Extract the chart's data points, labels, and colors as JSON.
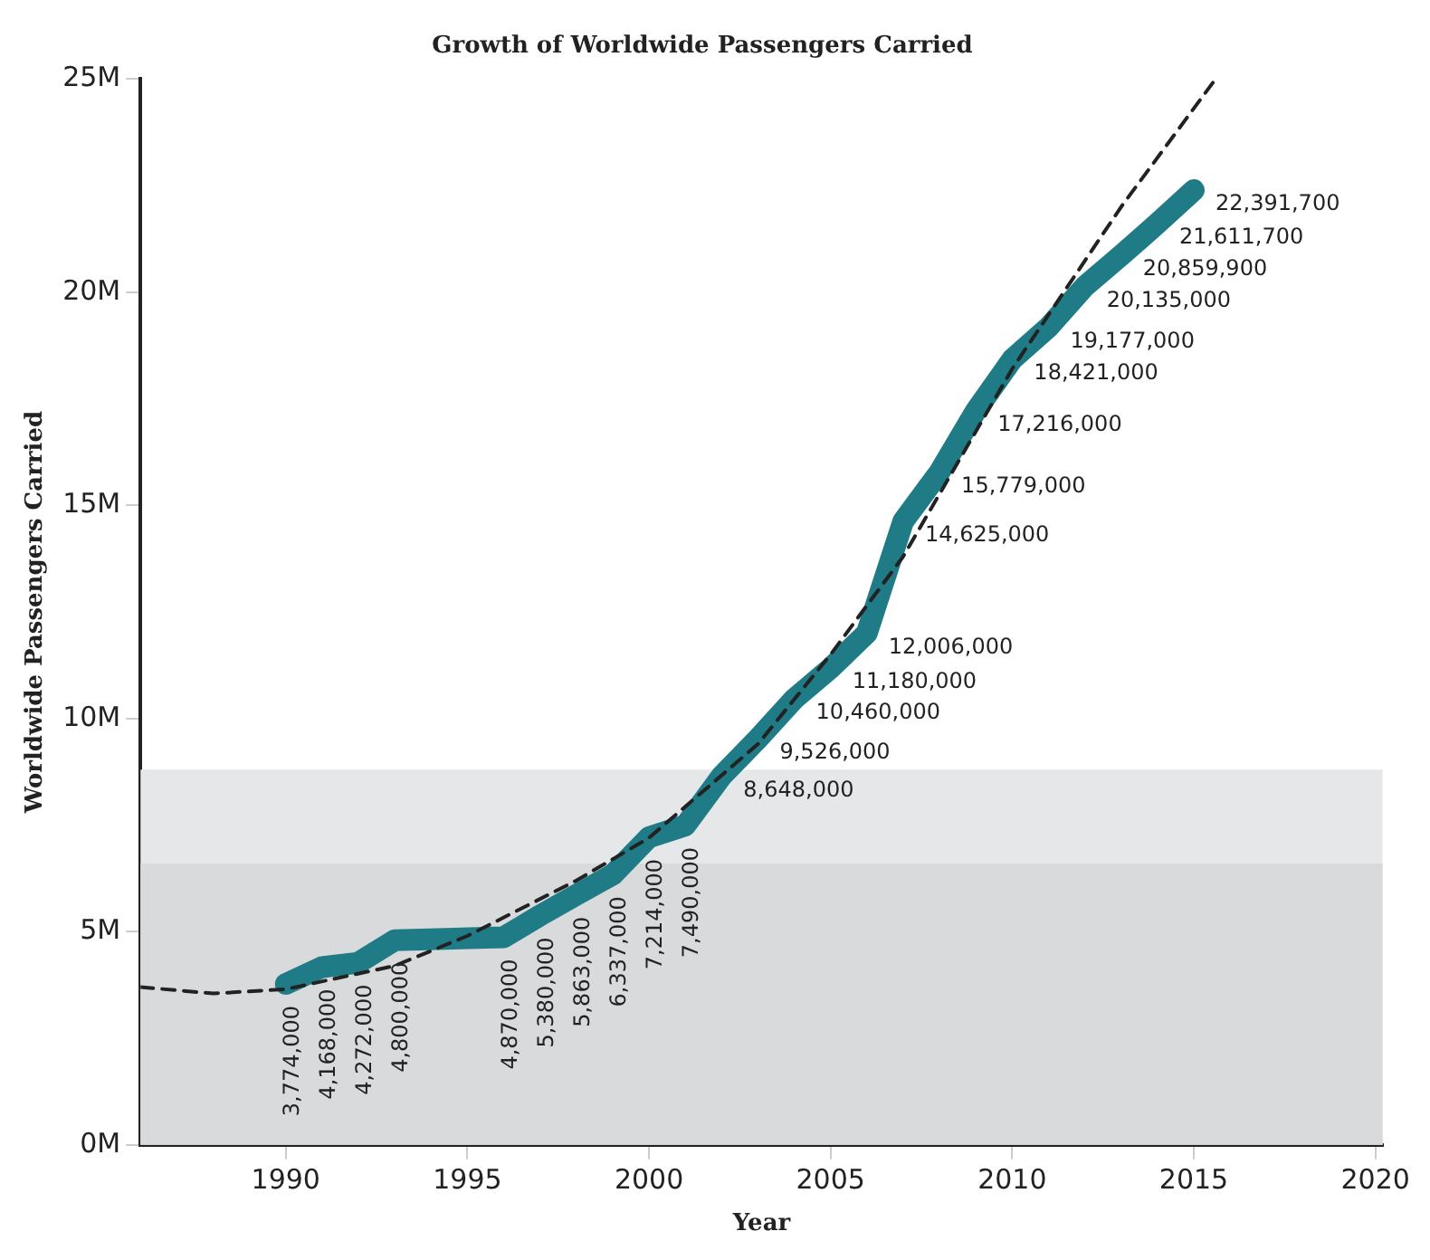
{
  "chart_data": {
    "type": "line",
    "title": "Growth of Worldwide Passengers Carried",
    "xlabel": "Year",
    "ylabel": "Worldwide Passengers Carried",
    "xlim": [
      1986,
      2020.2
    ],
    "xticks": [
      1990,
      1995,
      2000,
      2005,
      2010,
      2015,
      2020
    ],
    "ylim": [
      0,
      25000000
    ],
    "yticks": [
      {
        "value": 0,
        "label": "0M"
      },
      {
        "value": 5000000,
        "label": "5M"
      },
      {
        "value": 10000000,
        "label": "10M"
      },
      {
        "value": 15000000,
        "label": "15M"
      },
      {
        "value": 20000000,
        "label": "20M"
      },
      {
        "value": 25000000,
        "label": "25M"
      }
    ],
    "series": [
      {
        "color": "#1f7c86",
        "x": [
          1990,
          1991,
          1992,
          1993,
          1996,
          1997,
          1998,
          1999,
          2000,
          2001,
          2002,
          2003,
          2004,
          2005,
          2006,
          2007,
          2008,
          2009,
          2010,
          2011,
          2012,
          2013,
          2014,
          2015
        ],
        "values": [
          3774000,
          4168000,
          4272000,
          4800000,
          4870000,
          5380000,
          5863000,
          6337000,
          7214000,
          7490000,
          8648000,
          9526000,
          10460000,
          11180000,
          12006000,
          14625000,
          15779000,
          17216000,
          18421000,
          19177000,
          20135000,
          20859900,
          21611700,
          22391700
        ],
        "value_labels": [
          "3,774,000",
          "4,168,000",
          "4,272,000",
          "4,800,000",
          "4,870,000",
          "5,380,000",
          "5,863,000",
          "6,337,000",
          "7,214,000",
          "7,490,000",
          "8,648,000",
          "9,526,000",
          "10,460,000",
          "11,180,000",
          "12,006,000",
          "14,625,000",
          "15,779,000",
          "17,216,000",
          "18,421,000",
          "19,177,000",
          "20,135,000",
          "20,859,900",
          "21,611,700",
          "22,391,700"
        ]
      },
      {
        "type": "line",
        "line_style": "dashed",
        "color": "#222222",
        "x": [
          1986,
          1988,
          1990,
          1993,
          1995,
          1998,
          2000,
          2003,
          2005,
          2007,
          2010,
          2013,
          2015.6
        ],
        "values": [
          3700000,
          3550000,
          3650000,
          4200000,
          4900000,
          6200000,
          7200000,
          9400000,
          11500000,
          13800000,
          18200000,
          22000000,
          25000000
        ]
      }
    ],
    "bands": [
      {
        "axis": "y",
        "from": 0,
        "to": 8800000,
        "color": "#e6e7e9"
      },
      {
        "axis": "y",
        "from": 0,
        "to": 6600000,
        "color": "#d9dadc"
      }
    ],
    "grid": false,
    "legend": false,
    "marker": "none"
  }
}
